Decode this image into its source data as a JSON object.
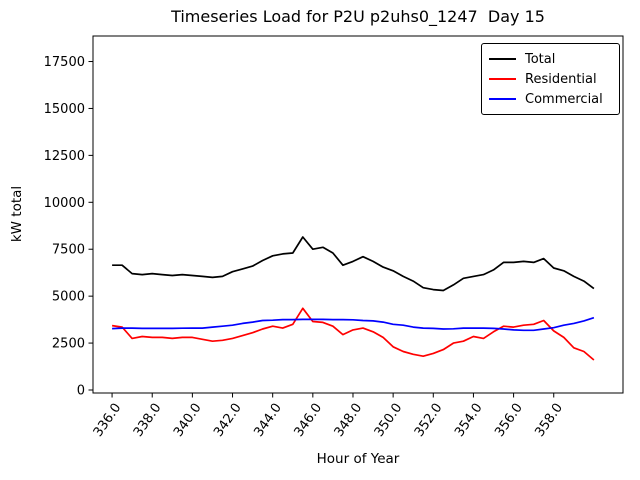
{
  "title": "Timeseries Load for P2U p2uhs0_1247  Day 15",
  "axes": {
    "xlabel": "Hour of Year",
    "ylabel": "kW total"
  },
  "legend": {
    "position": "upper-right",
    "items": [
      {
        "label": "Total",
        "color": "#000000"
      },
      {
        "label": "Residential",
        "color": "#ff0000"
      },
      {
        "label": "Commercial",
        "color": "#0000ff"
      }
    ]
  },
  "chart_data": {
    "type": "line",
    "title": "Timeseries Load for P2U p2uhs0_1247  Day 15",
    "xlabel": "Hour of Year",
    "ylabel": "kW total",
    "grid": false,
    "legend_position": "upper right",
    "xlim": [
      335.05,
      361.45
    ],
    "ylim": [
      -160,
      18860
    ],
    "xticks": [
      336,
      338,
      340,
      342,
      344,
      346,
      348,
      350,
      352,
      354,
      356,
      358
    ],
    "xtick_decimals": 1,
    "yticks": [
      0,
      2500,
      5000,
      7500,
      10000,
      12500,
      15000,
      17500
    ],
    "x": [
      336.0,
      336.5,
      337.0,
      337.5,
      338.0,
      338.5,
      339.0,
      339.5,
      340.0,
      340.5,
      341.0,
      341.5,
      342.0,
      342.5,
      343.0,
      343.5,
      344.0,
      344.5,
      345.0,
      345.5,
      346.0,
      346.5,
      347.0,
      347.5,
      348.0,
      348.5,
      349.0,
      349.5,
      350.0,
      350.5,
      351.0,
      351.5,
      352.0,
      352.5,
      353.0,
      353.5,
      354.0,
      354.5,
      355.0,
      355.5,
      356.0,
      356.5,
      357.0,
      357.5,
      358.0,
      358.5,
      359.0,
      359.5,
      360.0
    ],
    "series": [
      {
        "name": "Total",
        "color": "#000000",
        "values": [
          6650,
          6650,
          6200,
          6150,
          6200,
          6150,
          6100,
          6150,
          6100,
          6050,
          6000,
          6050,
          6300,
          6450,
          6600,
          6900,
          7150,
          7250,
          7300,
          8150,
          7500,
          7600,
          7300,
          6650,
          6850,
          7100,
          6850,
          6550,
          6350,
          6050,
          5800,
          5450,
          5350,
          5300,
          5600,
          5950,
          6050,
          6150,
          6400,
          6800,
          6800,
          6850,
          6800,
          7000,
          6500,
          6350,
          6050,
          5800,
          5400
        ]
      },
      {
        "name": "Residential",
        "color": "#ff0000",
        "values": [
          3430,
          3350,
          2750,
          2850,
          2800,
          2800,
          2750,
          2800,
          2800,
          2700,
          2600,
          2650,
          2750,
          2900,
          3050,
          3250,
          3400,
          3300,
          3500,
          4350,
          3650,
          3600,
          3400,
          2950,
          3200,
          3300,
          3100,
          2800,
          2300,
          2050,
          1900,
          1800,
          1950,
          2150,
          2500,
          2600,
          2850,
          2750,
          3100,
          3400,
          3350,
          3450,
          3500,
          3700,
          3150,
          2800,
          2250,
          2050,
          1600
        ]
      },
      {
        "name": "Commercial",
        "color": "#0000ff",
        "values": [
          3270,
          3300,
          3300,
          3280,
          3280,
          3280,
          3280,
          3290,
          3300,
          3300,
          3350,
          3400,
          3450,
          3550,
          3620,
          3700,
          3720,
          3750,
          3750,
          3760,
          3760,
          3760,
          3750,
          3750,
          3740,
          3700,
          3680,
          3620,
          3500,
          3450,
          3350,
          3300,
          3280,
          3250,
          3260,
          3300,
          3300,
          3300,
          3280,
          3250,
          3200,
          3180,
          3180,
          3250,
          3320,
          3450,
          3550,
          3680,
          3850
        ]
      }
    ]
  }
}
